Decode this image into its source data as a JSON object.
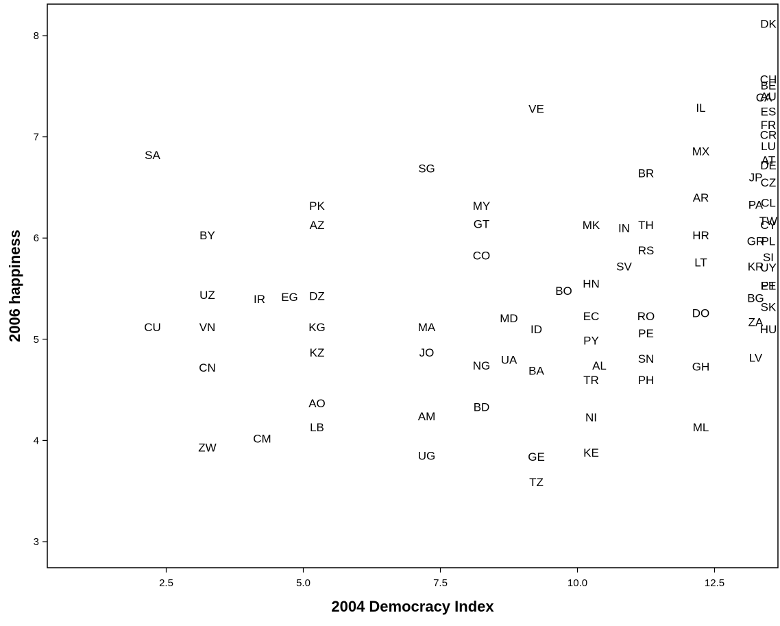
{
  "chart_data": {
    "type": "scatter",
    "title": "",
    "xlabel": "2004 Democracy Index",
    "ylabel": "2006 happiness",
    "xlim": [
      1.25,
      14.4
    ],
    "ylim": [
      2.7,
      8.3
    ],
    "xticks": [
      2.5,
      5.0,
      7.5,
      10.0,
      12.5
    ],
    "xtick_labels": [
      "2.5",
      "5.0",
      "7.5",
      "10.0",
      "12.5"
    ],
    "yticks": [
      3,
      4,
      5,
      6,
      7,
      8
    ],
    "ytick_labels": [
      "3",
      "4",
      "5",
      "6",
      "7",
      "8"
    ],
    "grid": false,
    "marker": "text-label",
    "points": [
      {
        "label": "SA",
        "x": 2.25,
        "y": 6.82
      },
      {
        "label": "CU",
        "x": 2.25,
        "y": 5.12
      },
      {
        "label": "BY",
        "x": 3.25,
        "y": 6.03
      },
      {
        "label": "UZ",
        "x": 3.25,
        "y": 5.44
      },
      {
        "label": "VN",
        "x": 3.25,
        "y": 5.12
      },
      {
        "label": "CN",
        "x": 3.25,
        "y": 4.72
      },
      {
        "label": "ZW",
        "x": 3.25,
        "y": 3.93
      },
      {
        "label": "IR",
        "x": 4.2,
        "y": 5.4
      },
      {
        "label": "CM",
        "x": 4.25,
        "y": 4.02
      },
      {
        "label": "EG",
        "x": 4.75,
        "y": 5.42
      },
      {
        "label": "PK",
        "x": 5.25,
        "y": 6.32
      },
      {
        "label": "AZ",
        "x": 5.25,
        "y": 6.13
      },
      {
        "label": "DZ",
        "x": 5.25,
        "y": 5.43
      },
      {
        "label": "KG",
        "x": 5.25,
        "y": 5.12
      },
      {
        "label": "KZ",
        "x": 5.25,
        "y": 4.87
      },
      {
        "label": "AO",
        "x": 5.25,
        "y": 4.37
      },
      {
        "label": "LB",
        "x": 5.25,
        "y": 4.13
      },
      {
        "label": "SG",
        "x": 7.25,
        "y": 6.69
      },
      {
        "label": "MA",
        "x": 7.25,
        "y": 5.12
      },
      {
        "label": "JO",
        "x": 7.25,
        "y": 4.87
      },
      {
        "label": "AM",
        "x": 7.25,
        "y": 4.24
      },
      {
        "label": "UG",
        "x": 7.25,
        "y": 3.85
      },
      {
        "label": "MY",
        "x": 8.25,
        "y": 6.32
      },
      {
        "label": "GT",
        "x": 8.25,
        "y": 6.14
      },
      {
        "label": "CO",
        "x": 8.25,
        "y": 5.83
      },
      {
        "label": "NG",
        "x": 8.25,
        "y": 4.74
      },
      {
        "label": "BD",
        "x": 8.25,
        "y": 4.33
      },
      {
        "label": "UA",
        "x": 8.75,
        "y": 4.8
      },
      {
        "label": "MD",
        "x": 8.75,
        "y": 5.21
      },
      {
        "label": "VE",
        "x": 9.25,
        "y": 7.28
      },
      {
        "label": "ID",
        "x": 9.25,
        "y": 5.1
      },
      {
        "label": "BA",
        "x": 9.25,
        "y": 4.69
      },
      {
        "label": "GE",
        "x": 9.25,
        "y": 3.84
      },
      {
        "label": "TZ",
        "x": 9.25,
        "y": 3.59
      },
      {
        "label": "BO",
        "x": 9.75,
        "y": 5.48
      },
      {
        "label": "MK",
        "x": 10.25,
        "y": 6.13
      },
      {
        "label": "HN",
        "x": 10.25,
        "y": 5.55
      },
      {
        "label": "EC",
        "x": 10.25,
        "y": 5.23
      },
      {
        "label": "PY",
        "x": 10.25,
        "y": 4.99
      },
      {
        "label": "AL",
        "x": 10.4,
        "y": 4.74
      },
      {
        "label": "TR",
        "x": 10.25,
        "y": 4.6
      },
      {
        "label": "NI",
        "x": 10.25,
        "y": 4.23
      },
      {
        "label": "KE",
        "x": 10.25,
        "y": 3.88
      },
      {
        "label": "IN",
        "x": 10.85,
        "y": 6.1
      },
      {
        "label": "SV",
        "x": 10.85,
        "y": 5.72
      },
      {
        "label": "TH",
        "x": 11.25,
        "y": 6.13
      },
      {
        "label": "BR",
        "x": 11.25,
        "y": 6.64
      },
      {
        "label": "RS",
        "x": 11.25,
        "y": 5.88
      },
      {
        "label": "RO",
        "x": 11.25,
        "y": 5.23
      },
      {
        "label": "PE",
        "x": 11.25,
        "y": 5.06
      },
      {
        "label": "SN",
        "x": 11.25,
        "y": 4.81
      },
      {
        "label": "PH",
        "x": 11.25,
        "y": 4.6
      },
      {
        "label": "IL",
        "x": 12.25,
        "y": 7.29
      },
      {
        "label": "MX",
        "x": 12.25,
        "y": 6.86
      },
      {
        "label": "AR",
        "x": 12.25,
        "y": 6.4
      },
      {
        "label": "HR",
        "x": 12.25,
        "y": 6.03
      },
      {
        "label": "LT",
        "x": 12.25,
        "y": 5.76
      },
      {
        "label": "DO",
        "x": 12.25,
        "y": 5.26
      },
      {
        "label": "GH",
        "x": 12.25,
        "y": 4.73
      },
      {
        "label": "ML",
        "x": 12.25,
        "y": 4.13
      },
      {
        "label": "JP",
        "x": 13.25,
        "y": 6.6
      },
      {
        "label": "PA",
        "x": 13.25,
        "y": 6.33
      },
      {
        "label": "GR",
        "x": 13.25,
        "y": 5.97
      },
      {
        "label": "KR",
        "x": 13.25,
        "y": 5.72
      },
      {
        "label": "BG",
        "x": 13.25,
        "y": 5.41
      },
      {
        "label": "ZA",
        "x": 13.25,
        "y": 5.17
      },
      {
        "label": "LV",
        "x": 13.25,
        "y": 4.82
      },
      {
        "label": "CA",
        "x": 13.4,
        "y": 7.39
      },
      {
        "label": "CR",
        "x": 13.5,
        "y": 7.02
      },
      {
        "label": "TW",
        "x": 13.55,
        "y": 6.17
      },
      {
        "label": "AU",
        "x": 13.75,
        "y": 7.4
      },
      {
        "label": "CH",
        "x": 13.75,
        "y": 7.57
      },
      {
        "label": "FR",
        "x": 13.7,
        "y": 7.12
      },
      {
        "label": "AT",
        "x": 13.75,
        "y": 6.77
      },
      {
        "label": "SI",
        "x": 13.85,
        "y": 5.81
      },
      {
        "label": "EE",
        "x": 13.75,
        "y": 5.53
      },
      {
        "label": "DK",
        "x": 14.25,
        "y": 8.12
      },
      {
        "label": "BE",
        "x": 14.25,
        "y": 7.51
      },
      {
        "label": "ES",
        "x": 14.25,
        "y": 7.25
      },
      {
        "label": "LU",
        "x": 14.25,
        "y": 6.91
      },
      {
        "label": "DE",
        "x": 14.25,
        "y": 6.72
      },
      {
        "label": "CZ",
        "x": 14.6,
        "y": 6.55
      },
      {
        "label": "CL",
        "x": 14.25,
        "y": 6.35
      },
      {
        "label": "CY",
        "x": 14.25,
        "y": 6.13
      },
      {
        "label": "PL",
        "x": 14.25,
        "y": 5.97
      },
      {
        "label": "UY",
        "x": 14.25,
        "y": 5.71
      },
      {
        "label": "PT",
        "x": 14.25,
        "y": 5.53
      },
      {
        "label": "SK",
        "x": 14.25,
        "y": 5.32
      },
      {
        "label": "HU",
        "x": 14.25,
        "y": 5.1
      }
    ]
  }
}
